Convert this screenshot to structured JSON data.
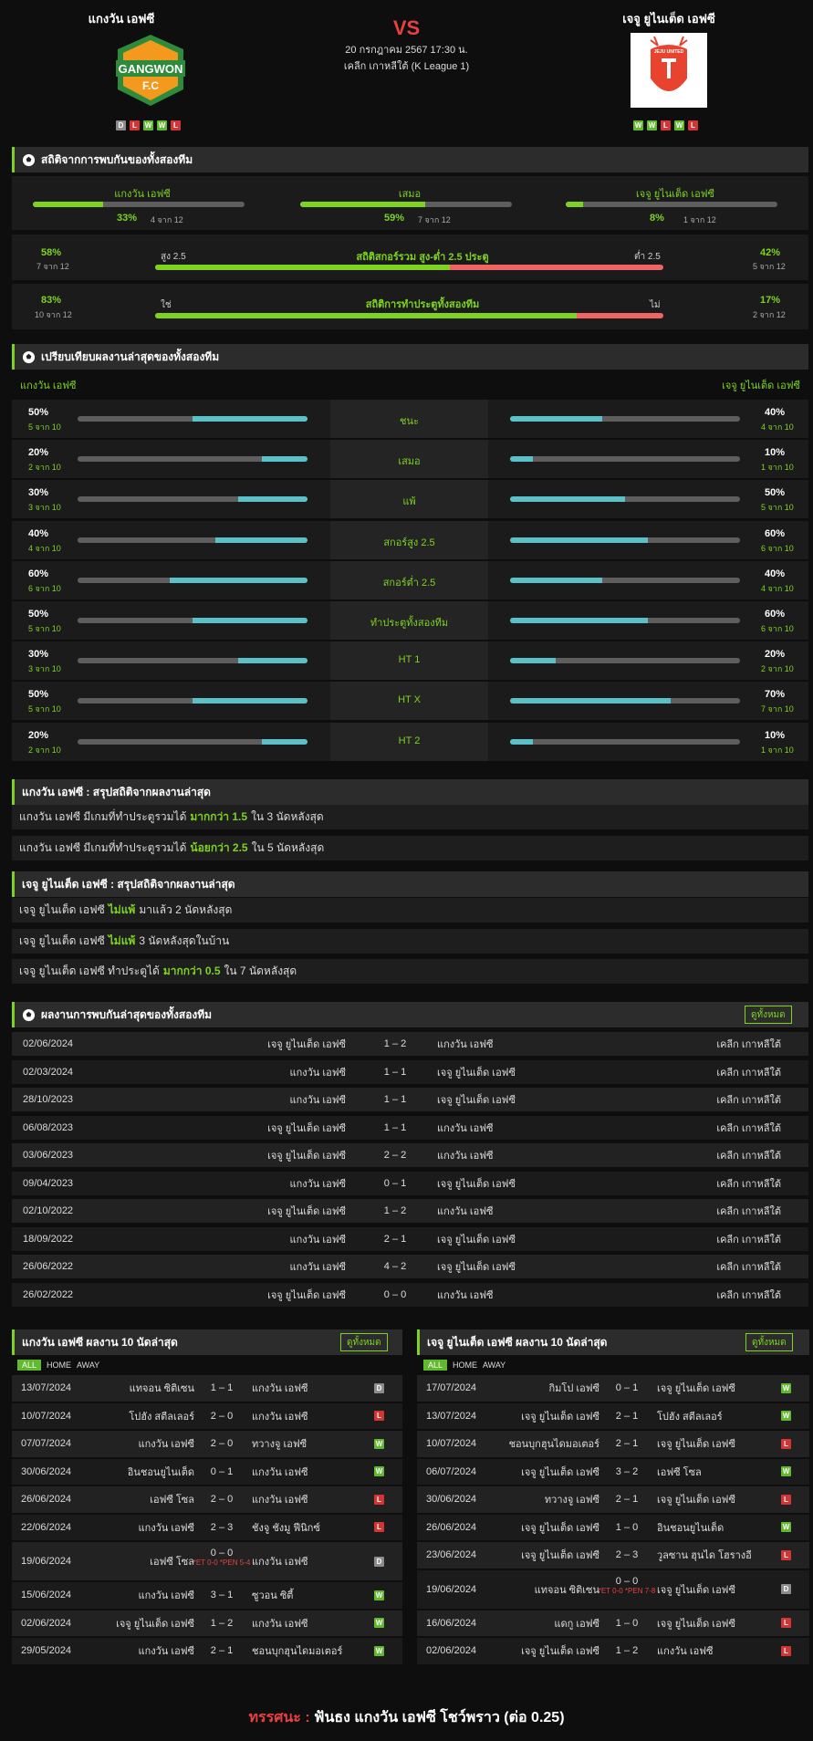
{
  "header": {
    "home_name": "แกงวัน เอฟซี",
    "away_name": "เจจู ยูไนเต็ด เอฟซี",
    "vs": "VS",
    "datetime": "20 กรกฎาคม 2567 17:30 น.",
    "league": "เคลีก เกาหลีใต้ (K League 1)",
    "home_logo_text": [
      "GANGWON",
      "F.C"
    ],
    "away_logo_text": "JEJU UNITED",
    "home_form": [
      "D",
      "L",
      "W",
      "W",
      "L"
    ],
    "away_form": [
      "W",
      "W",
      "L",
      "W",
      "L"
    ]
  },
  "h2h": {
    "title": "สถิติจากการพบกันของทั้งสองทีม",
    "cols": [
      {
        "label": "แกงวัน เอฟซี",
        "pct": "33%",
        "count": "4 จาก 12",
        "value": 0.33
      },
      {
        "label": "เสมอ",
        "pct": "59%",
        "count": "7 จาก 12",
        "value": 0.59
      },
      {
        "label": "เจจู ยูไนเต็ด เอฟซี",
        "pct": "8%",
        "count": "1 จาก 12",
        "value": 0.08
      }
    ],
    "ou": {
      "left_pct": "58%",
      "left_count": "7 จาก 12",
      "left_tag": "สูง 2.5",
      "title": "สถิติสกอร์รวม สูง-ต่ำ 2.5 ประตู",
      "right_tag": "ต่ำ 2.5",
      "right_pct": "42%",
      "right_count": "5 จาก 12",
      "value": 0.58
    },
    "btts": {
      "left_pct": "83%",
      "left_count": "10 จาก 12",
      "left_tag": "ใช่",
      "title": "สถิติการทำประตูทั้งสองทีม",
      "right_tag": "ไม่",
      "right_pct": "17%",
      "right_count": "2 จาก 12",
      "value": 0.83
    }
  },
  "compare": {
    "title": "เปรียบเทียบผลงานล่าสุดของทั้งสองทีม",
    "home": "แกงวัน เอฟซี",
    "away": "เจจู ยูไนเต็ด เอฟซี",
    "rows": [
      {
        "label": "ชนะ",
        "hp": "50%",
        "hc": "5 จาก 10",
        "hv": 0.5,
        "ap": "40%",
        "ac": "4 จาก 10",
        "av": 0.4
      },
      {
        "label": "เสมอ",
        "hp": "20%",
        "hc": "2 จาก 10",
        "hv": 0.2,
        "ap": "10%",
        "ac": "1 จาก 10",
        "av": 0.1
      },
      {
        "label": "แพ้",
        "hp": "30%",
        "hc": "3 จาก 10",
        "hv": 0.3,
        "ap": "50%",
        "ac": "5 จาก 10",
        "av": 0.5
      },
      {
        "label": "สกอร์สูง 2.5",
        "hp": "40%",
        "hc": "4 จาก 10",
        "hv": 0.4,
        "ap": "60%",
        "ac": "6 จาก 10",
        "av": 0.6
      },
      {
        "label": "สกอร์ต่ำ 2.5",
        "hp": "60%",
        "hc": "6 จาก 10",
        "hv": 0.6,
        "ap": "40%",
        "ac": "4 จาก 10",
        "av": 0.4
      },
      {
        "label": "ทำประตูทั้งสองทีม",
        "hp": "50%",
        "hc": "5 จาก 10",
        "hv": 0.5,
        "ap": "60%",
        "ac": "6 จาก 10",
        "av": 0.6
      },
      {
        "label": "HT 1",
        "hp": "30%",
        "hc": "3 จาก 10",
        "hv": 0.3,
        "ap": "20%",
        "ac": "2 จาก 10",
        "av": 0.2
      },
      {
        "label": "HT X",
        "hp": "50%",
        "hc": "5 จาก 10",
        "hv": 0.5,
        "ap": "70%",
        "ac": "7 จาก 10",
        "av": 0.7
      },
      {
        "label": "HT 2",
        "hp": "20%",
        "hc": "2 จาก 10",
        "hv": 0.2,
        "ap": "10%",
        "ac": "1 จาก 10",
        "av": 0.1
      }
    ]
  },
  "home_summary": {
    "title": "แกงวัน เอฟซี : สรุปสถิติจากผลงานล่าสุด",
    "notes": [
      {
        "pre": "แกงวัน เอฟซี มีเกมที่ทำประตูรวมได้",
        "hl": "มากกว่า 1.5",
        "post": "ใน 3 นัดหลังสุด"
      },
      {
        "pre": "แกงวัน เอฟซี มีเกมที่ทำประตูรวมได้",
        "hl": "น้อยกว่า 2.5",
        "post": "ใน 5 นัดหลังสุด"
      }
    ]
  },
  "away_summary": {
    "title": "เจจู ยูไนเต็ด เอฟซี : สรุปสถิติจากผลงานล่าสุด",
    "notes": [
      {
        "pre": "เจจู ยูไนเต็ด เอฟซี",
        "hl": "ไม่แพ้",
        "post": "มาแล้ว 2 นัดหลังสุด"
      },
      {
        "pre": "เจจู ยูไนเต็ด เอฟซี",
        "hl": "ไม่แพ้",
        "post": "3 นัดหลังสุดในบ้าน"
      },
      {
        "pre": "เจจู ยูไนเต็ด เอฟซี ทำประตูได้",
        "hl": "มากกว่า 0.5",
        "post": "ใน 7 นัดหลังสุด"
      }
    ]
  },
  "h2h_results": {
    "title": "ผลงานการพบกันล่าสุดของทั้งสองทีม",
    "see_all": "ดูทั้งหมด",
    "rows": [
      {
        "date": "02/06/2024",
        "home": "เจจู ยูไนเต็ด เอฟซี",
        "score": "1 – 2",
        "away": "แกงวัน เอฟซี",
        "league": "เคลีก เกาหลีใต้"
      },
      {
        "date": "02/03/2024",
        "home": "แกงวัน เอฟซี",
        "score": "1 – 1",
        "away": "เจจู ยูไนเต็ด เอฟซี",
        "league": "เคลีก เกาหลีใต้"
      },
      {
        "date": "28/10/2023",
        "home": "แกงวัน เอฟซี",
        "score": "1 – 1",
        "away": "เจจู ยูไนเต็ด เอฟซี",
        "league": "เคลีก เกาหลีใต้"
      },
      {
        "date": "06/08/2023",
        "home": "เจจู ยูไนเต็ด เอฟซี",
        "score": "1 – 1",
        "away": "แกงวัน เอฟซี",
        "league": "เคลีก เกาหลีใต้"
      },
      {
        "date": "03/06/2023",
        "home": "เจจู ยูไนเต็ด เอฟซี",
        "score": "2 – 2",
        "away": "แกงวัน เอฟซี",
        "league": "เคลีก เกาหลีใต้"
      },
      {
        "date": "09/04/2023",
        "home": "แกงวัน เอฟซี",
        "score": "0 – 1",
        "away": "เจจู ยูไนเต็ด เอฟซี",
        "league": "เคลีก เกาหลีใต้"
      },
      {
        "date": "02/10/2022",
        "home": "เจจู ยูไนเต็ด เอฟซี",
        "score": "1 – 2",
        "away": "แกงวัน เอฟซี",
        "league": "เคลีก เกาหลีใต้"
      },
      {
        "date": "18/09/2022",
        "home": "แกงวัน เอฟซี",
        "score": "2 – 1",
        "away": "เจจู ยูไนเต็ด เอฟซี",
        "league": "เคลีก เกาหลีใต้"
      },
      {
        "date": "26/06/2022",
        "home": "แกงวัน เอฟซี",
        "score": "4 – 2",
        "away": "เจจู ยูไนเต็ด เอฟซี",
        "league": "เคลีก เกาหลีใต้"
      },
      {
        "date": "26/02/2022",
        "home": "เจจู ยูไนเต็ด เอฟซี",
        "score": "0 – 0",
        "away": "แกงวัน เอฟซี",
        "league": "เคลีก เกาหลีใต้"
      }
    ]
  },
  "home_last10": {
    "title": "แกงวัน เอฟซี ผลงาน 10 นัดล่าสุด",
    "see_all": "ดูทั้งหมด",
    "tabs": [
      "ALL",
      "HOME",
      "AWAY"
    ],
    "rows": [
      {
        "date": "13/07/2024",
        "home": "แทจอน ซิติเซน",
        "score": "1 – 1",
        "away": "แกงวัน เอฟซี",
        "res": "D"
      },
      {
        "date": "10/07/2024",
        "home": "โปฮัง สตีลเลอร์",
        "score": "2 – 0",
        "away": "แกงวัน เอฟซี",
        "res": "L"
      },
      {
        "date": "07/07/2024",
        "home": "แกงวัน เอฟซี",
        "score": "2 – 0",
        "away": "ทวางจู เอฟซี",
        "res": "W"
      },
      {
        "date": "30/06/2024",
        "home": "อินชอนยูไนเต็ด",
        "score": "0 – 1",
        "away": "แกงวัน เอฟซี",
        "res": "W"
      },
      {
        "date": "26/06/2024",
        "home": "เอฟซี โซล",
        "score": "2 – 0",
        "away": "แกงวัน เอฟซี",
        "res": "L"
      },
      {
        "date": "22/06/2024",
        "home": "แกงวัน เอฟซี",
        "score": "2 – 3",
        "away": "ชังจู ชังมู ฟีนิกซ์",
        "res": "L"
      },
      {
        "date": "19/06/2024",
        "home": "เอฟซี โซล",
        "score": "0 – 0",
        "extra": "*ET 0-0 *PEN 5-4",
        "away": "แกงวัน เอฟซี",
        "res": "D"
      },
      {
        "date": "15/06/2024",
        "home": "แกงวัน เอฟซี",
        "score": "3 – 1",
        "away": "ซูวอน ซิตี้",
        "res": "W"
      },
      {
        "date": "02/06/2024",
        "home": "เจจู ยูไนเต็ด เอฟซี",
        "score": "1 – 2",
        "away": "แกงวัน เอฟซี",
        "res": "W"
      },
      {
        "date": "29/05/2024",
        "home": "แกงวัน เอฟซี",
        "score": "2 – 1",
        "away": "ชอนบุกฮุนไดมอเตอร์",
        "res": "W"
      }
    ]
  },
  "away_last10": {
    "title": "เจจู ยูไนเต็ด เอฟซี ผลงาน 10 นัดล่าสุด",
    "see_all": "ดูทั้งหมด",
    "tabs": [
      "ALL",
      "HOME",
      "AWAY"
    ],
    "rows": [
      {
        "date": "17/07/2024",
        "home": "กิมโป เอฟซี",
        "score": "0 – 1",
        "away": "เจจู ยูไนเต็ด เอฟซี",
        "res": "W"
      },
      {
        "date": "13/07/2024",
        "home": "เจจู ยูไนเต็ด เอฟซี",
        "score": "2 – 1",
        "away": "โปฮัง สตีลเลอร์",
        "res": "W"
      },
      {
        "date": "10/07/2024",
        "home": "ชอนบุกฮุนไดมอเตอร์",
        "score": "2 – 1",
        "away": "เจจู ยูไนเต็ด เอฟซี",
        "res": "L"
      },
      {
        "date": "06/07/2024",
        "home": "เจจู ยูไนเต็ด เอฟซี",
        "score": "3 – 2",
        "away": "เอฟซี โซล",
        "res": "W"
      },
      {
        "date": "30/06/2024",
        "home": "ทวางจู เอฟซี",
        "score": "2 – 1",
        "away": "เจจู ยูไนเต็ด เอฟซี",
        "res": "L"
      },
      {
        "date": "26/06/2024",
        "home": "เจจู ยูไนเต็ด เอฟซี",
        "score": "1 – 0",
        "away": "อินชอนยูไนเต็ด",
        "res": "W"
      },
      {
        "date": "23/06/2024",
        "home": "เจจู ยูไนเต็ด เอฟซี",
        "score": "2 – 3",
        "away": "วูลซาน ฮุนได โฮรางอี",
        "res": "L"
      },
      {
        "date": "19/06/2024",
        "home": "แทจอน ซิติเซน",
        "score": "0 – 0",
        "extra": "*ET 0-0 *PEN 7-8",
        "away": "เจจู ยูไนเต็ด เอฟซี",
        "res": "D"
      },
      {
        "date": "16/06/2024",
        "home": "แดกู เอฟซี",
        "score": "1 – 0",
        "away": "เจจู ยูไนเต็ด เอฟซี",
        "res": "L"
      },
      {
        "date": "02/06/2024",
        "home": "เจจู ยูไนเต็ด เอฟซี",
        "score": "1 – 2",
        "away": "แกงวัน เอฟซี",
        "res": "L"
      }
    ]
  },
  "verdict": {
    "label": "ทรรศนะ :",
    "text": "ฟันธง แกงวัน เอฟซี โชว์พราว (ต่อ 0.25)"
  },
  "colors": {
    "accent": "#7ed321",
    "bar_home": "#5bc0c8",
    "bar_low": "#f06464",
    "title_red": "#e84040"
  }
}
